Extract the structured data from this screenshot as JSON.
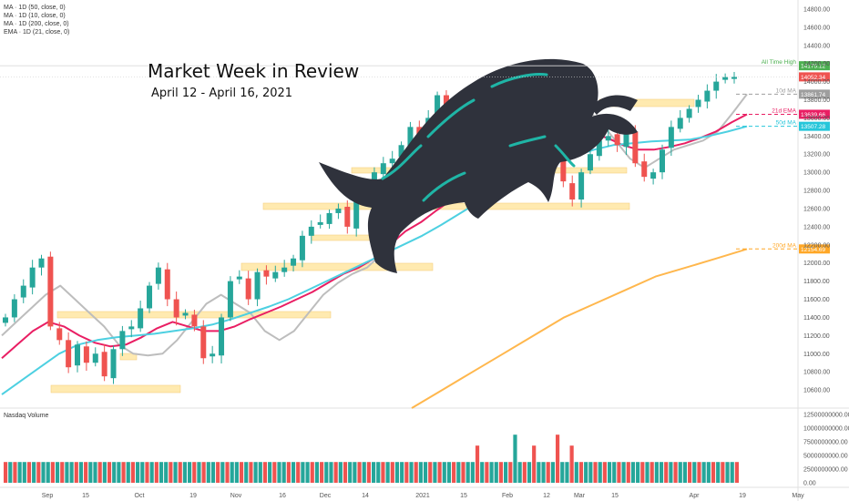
{
  "header": {
    "title": "Market Week in Review",
    "subtitle": "April 12 - April 16, 2021"
  },
  "legend": {
    "items": [
      "MA · 1D (50, close, 0)",
      "MA · 1D (10, close, 0)",
      "MA · 1D (200, close, 0)",
      "EMA · 1D (21, close, 0)"
    ]
  },
  "volume_panel": {
    "label": "Nasdaq Volume"
  },
  "colors": {
    "up": "#26a69a",
    "down": "#ef5350",
    "ma10": "#bdbdbd",
    "ema21": "#e91e63",
    "ma50": "#4dd0e1",
    "ma200": "#ffb74d",
    "zone": "#ffe7a3",
    "ath": "#4caf50",
    "last_price": "#ef5350",
    "bull_body": "#2f323c",
    "bull_accent": "#1fb5a6"
  },
  "icons": {
    "bull": "charging-bull-illustration"
  },
  "chart_data": {
    "type": "candlestick",
    "price_axis": {
      "ylim": [
        10400,
        14900
      ],
      "ticks": [
        "10600.00",
        "10800.00",
        "11000.00",
        "11200.00",
        "11400.00",
        "11600.00",
        "11800.00",
        "12000.00",
        "12200.00",
        "12400.00",
        "12600.00",
        "12800.00",
        "13000.00",
        "13200.00",
        "13400.00",
        "13600.00",
        "13800.00",
        "14000.00",
        "14200.00",
        "14400.00",
        "14600.00",
        "14800.00"
      ]
    },
    "volume_axis": {
      "ylim": [
        0,
        12500000000
      ],
      "ticks": [
        "0.00",
        "2500000000.00",
        "5000000000.00",
        "7500000000.00",
        "10000000000.00",
        "12500000000.00"
      ]
    },
    "time_axis": {
      "labels": [
        "Sep",
        "15",
        "Oct",
        "19",
        "Nov",
        "16",
        "Dec",
        "14",
        "2021",
        "15",
        "Feb",
        "12",
        "Mar",
        "15",
        "Apr",
        "19",
        "May"
      ]
    },
    "price_labels": [
      {
        "name": "All Time High",
        "value": 14175.12,
        "text": "14175.12"
      },
      {
        "name": "",
        "value": 14052.34,
        "text": "14052.34"
      },
      {
        "name": "10d MA",
        "value": 13861.74,
        "text": "13861.74"
      },
      {
        "name": "21d EMA",
        "value": 13639.66,
        "text": "13639.66"
      },
      {
        "name": "50d MA",
        "value": 13507.28,
        "text": "13507.28"
      },
      {
        "name": "200d MA",
        "value": 12154.69,
        "text": "12154.69"
      }
    ],
    "ohlc_close_path": [
      11400,
      11600,
      11750,
      11950,
      12050,
      11300,
      11150,
      10850,
      11100,
      10900,
      11000,
      10750,
      11050,
      11250,
      11300,
      11500,
      11750,
      11950,
      11600,
      11400,
      11450,
      11300,
      10950,
      11000,
      11400,
      11800,
      11850,
      11600,
      11900,
      11850,
      11900,
      11950,
      12050,
      12300,
      12400,
      12450,
      12550,
      12600,
      12400,
      12700,
      12850,
      13000,
      13100,
      13150,
      13300,
      13500,
      13350,
      13600,
      13850,
      13700,
      13500,
      13650,
      13800,
      13750,
      13850,
      14000,
      13900,
      13600,
      13750,
      13450,
      13300,
      13150,
      12900,
      12700,
      13000,
      13200,
      13350,
      13400,
      13300,
      13450,
      13100,
      12950,
      13000,
      13250,
      13500,
      13600,
      13700,
      13800,
      13900,
      14000,
      14050,
      14052
    ],
    "moving_averages": [
      {
        "name": "10d MA",
        "values": [
          11200,
          11350,
          11500,
          11650,
          11750,
          11600,
          11450,
          11300,
          11100,
          11000,
          10980,
          11000,
          11150,
          11350,
          11550,
          11650,
          11550,
          11450,
          11250,
          11150,
          11250,
          11450,
          11650,
          11780,
          11880,
          11950,
          12100,
          12300,
          12450,
          12580,
          12750,
          12950,
          13150,
          13350,
          13500,
          13650,
          13750,
          13780,
          13800,
          13750,
          13700,
          13550,
          13350,
          13150,
          13050,
          13150,
          13250,
          13300,
          13350,
          13450,
          13650,
          13861
        ]
      },
      {
        "name": "21d EMA",
        "values": [
          10950,
          11100,
          11250,
          11350,
          11300,
          11200,
          11120,
          11080,
          11100,
          11180,
          11280,
          11350,
          11300,
          11250,
          11250,
          11300,
          11380,
          11450,
          11520,
          11600,
          11680,
          11780,
          11880,
          11950,
          12050,
          12200,
          12350,
          12450,
          12580,
          12700,
          12850,
          12980,
          13100,
          13200,
          13300,
          13350,
          13400,
          13450,
          13420,
          13380,
          13300,
          13250,
          13250,
          13280,
          13320,
          13380,
          13450,
          13550,
          13639
        ]
      },
      {
        "name": "50d MA",
        "values": [
          10550,
          10700,
          10850,
          11000,
          11100,
          11150,
          11180,
          11200,
          11220,
          11250,
          11280,
          11320,
          11380,
          11450,
          11520,
          11600,
          11700,
          11800,
          11900,
          12000,
          12100,
          12200,
          12300,
          12420,
          12550,
          12680,
          12800,
          12920,
          13020,
          13100,
          13180,
          13250,
          13300,
          13320,
          13340,
          13350,
          13360,
          13400,
          13450,
          13507
        ]
      },
      {
        "name": "200d MA",
        "values": [
          10400,
          10600,
          10800,
          11000,
          11200,
          11400,
          11550,
          11700,
          11850,
          11950,
          12050,
          12154
        ]
      }
    ]
  }
}
